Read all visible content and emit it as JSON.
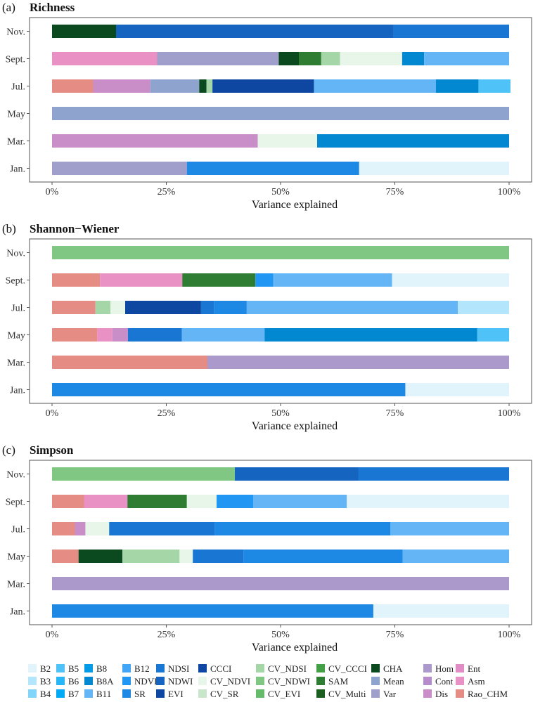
{
  "chart_data": [
    {
      "type": "stacked-bar",
      "panel": "(a)",
      "title": "Richness",
      "xlabel": "Variance explained",
      "xlim": [
        0,
        100
      ],
      "xticks": [
        "0%",
        "25%",
        "50%",
        "75%",
        "100%"
      ],
      "categories": [
        "Jan.",
        "Mar.",
        "May",
        "Jul.",
        "Sept.",
        "Nov."
      ],
      "bars": {
        "Nov.": [
          [
            "CHA",
            14
          ],
          [
            "NDWI",
            60.7
          ],
          [
            "NDSI",
            25.3
          ]
        ],
        "Sept.": [
          [
            "Asm",
            23
          ],
          [
            "Var",
            26.6
          ],
          [
            "CHA",
            4.4
          ],
          [
            "SAM",
            4.9
          ],
          [
            "CV_NDSI",
            4.1
          ],
          [
            "CV_NDVI",
            13.6
          ],
          [
            "B8A",
            4.8
          ],
          [
            "B11",
            18.6
          ]
        ],
        "Jul.": [
          [
            "Rao_CHM",
            9
          ],
          [
            "Dis",
            12.5
          ],
          [
            "Mean",
            10.7
          ],
          [
            "CHA",
            1.6
          ],
          [
            "CV_NDSI",
            1.3
          ],
          [
            "EVI",
            22.2
          ],
          [
            "B11",
            26.7
          ],
          [
            "B8A",
            9.3
          ],
          [
            "B5",
            7
          ]
        ],
        "May": [
          [
            "Mean",
            100
          ]
        ],
        "Mar.": [
          [
            "Dis",
            45
          ],
          [
            "CV_NDVI",
            13
          ],
          [
            "B8A",
            42
          ]
        ],
        "Jan.": [
          [
            "Var",
            29.5
          ],
          [
            "SR",
            37.7
          ],
          [
            "B2",
            32.8
          ]
        ]
      }
    },
    {
      "type": "stacked-bar",
      "panel": "(b)",
      "title": "Shannon−Wiener",
      "xlabel": "Variance explained",
      "xlim": [
        0,
        100
      ],
      "xticks": [
        "0%",
        "25%",
        "50%",
        "75%",
        "100%"
      ],
      "categories": [
        "Jan.",
        "Mar.",
        "May",
        "Jul.",
        "Sept.",
        "Nov."
      ],
      "bars": {
        "Nov.": [
          [
            "CV_NDWI",
            100
          ]
        ],
        "Sept.": [
          [
            "Rao_CHM",
            10.5
          ],
          [
            "Asm",
            18
          ],
          [
            "SAM",
            16
          ],
          [
            "NDVI",
            3.9
          ],
          [
            "B11",
            26
          ],
          [
            "B2",
            25.6
          ]
        ],
        "Jul.": [
          [
            "Rao_CHM",
            9.5
          ],
          [
            "CV_NDSI",
            3.3
          ],
          [
            "CV_NDVI",
            3.2
          ],
          [
            "EVI",
            16.6
          ],
          [
            "NDSI",
            2.8
          ],
          [
            "SR",
            7.2
          ],
          [
            "B11",
            46.2
          ],
          [
            "B3",
            11.2
          ]
        ],
        "May": [
          [
            "Rao_CHM",
            9.9
          ],
          [
            "Asm",
            3.3
          ],
          [
            "Dis",
            3.4
          ],
          [
            "NDSI",
            11.8
          ],
          [
            "B11",
            18.1
          ],
          [
            "B8A",
            46.5
          ],
          [
            "B5",
            7
          ]
        ],
        "Mar.": [
          [
            "Rao_CHM",
            34
          ],
          [
            "Hom",
            66
          ]
        ],
        "Jan.": [
          [
            "SR",
            77.3
          ],
          [
            "B2",
            22.7
          ]
        ]
      }
    },
    {
      "type": "stacked-bar",
      "panel": "(c)",
      "title": "Simpson",
      "xlabel": "Variance explained",
      "xlim": [
        0,
        100
      ],
      "xticks": [
        "0%",
        "25%",
        "50%",
        "75%",
        "100%"
      ],
      "categories": [
        "Jan.",
        "Mar.",
        "May",
        "Jul.",
        "Sept.",
        "Nov."
      ],
      "bars": {
        "Nov.": [
          [
            "CV_NDWI",
            40
          ],
          [
            "NDWI",
            27
          ],
          [
            "NDSI",
            33
          ]
        ],
        "Sept.": [
          [
            "Rao_CHM",
            7
          ],
          [
            "Asm",
            9.5
          ],
          [
            "SAM",
            13
          ],
          [
            "CV_NDVI",
            6.5
          ],
          [
            "NDVI",
            8
          ],
          [
            "B11",
            20.5
          ],
          [
            "B2",
            35.5
          ]
        ],
        "Jul.": [
          [
            "Rao_CHM",
            5
          ],
          [
            "Dis",
            2.3
          ],
          [
            "CV_NDVI",
            5.2
          ],
          [
            "NDSI",
            23.1
          ],
          [
            "SR",
            38.4
          ],
          [
            "B11",
            26
          ]
        ],
        "May": [
          [
            "Rao_CHM",
            5.8
          ],
          [
            "CHA",
            9.6
          ],
          [
            "CV_NDSI",
            12.5
          ],
          [
            "CV_NDVI",
            2.9
          ],
          [
            "NDSI",
            11.1
          ],
          [
            "SR",
            34.8
          ],
          [
            "B11",
            23.3
          ]
        ],
        "Mar.": [
          [
            "Hom",
            100
          ]
        ],
        "Jan.": [
          [
            "SR",
            70.3
          ],
          [
            "B2",
            29.7
          ]
        ]
      }
    }
  ],
  "legend": {
    "placement": "bottom",
    "columns": [
      [
        "B2",
        "B3",
        "B4"
      ],
      [
        "B5",
        "B6",
        "B7"
      ],
      [
        "B8",
        "B8A",
        "B11"
      ],
      [
        "B12",
        "NDVI",
        "SR"
      ],
      [
        "NDSI",
        "NDWI",
        "EVI"
      ],
      [
        "CCCI",
        "CV_NDVI",
        "CV_SR"
      ],
      [
        "CV_NDSI",
        "CV_NDWI",
        "CV_EVI"
      ],
      [
        "CV_CCCI",
        "SAM",
        "CV_Multi"
      ],
      [
        "CHA",
        "Mean",
        "Var"
      ],
      [
        "Hom",
        "Cont",
        "Dis"
      ],
      [
        "Ent",
        "Asm",
        "Rao_CHM"
      ]
    ]
  },
  "colors": {
    "B2": "#e1f3fb",
    "B3": "#b3e5fc",
    "B4": "#81d4fa",
    "B5": "#4fc3f7",
    "B6": "#29b6f6",
    "B7": "#03a9f4",
    "B8": "#039be5",
    "B8A": "#0288d1",
    "B11": "#64b5f6",
    "B12": "#42a5f5",
    "NDVI": "#2196f3",
    "SR": "#1e88e5",
    "NDSI": "#1976d2",
    "NDWI": "#1565c0",
    "EVI": "#0d47a1",
    "CCCI": "#0d47a1",
    "CV_NDVI": "#e8f5e9",
    "CV_SR": "#c8e6c9",
    "CV_NDSI": "#a5d6a7",
    "CV_NDWI": "#81c784",
    "CV_EVI": "#66bb6a",
    "CV_CCCI": "#43a047",
    "SAM": "#2e7d32",
    "CV_Multi": "#1b5e20",
    "CHA": "#0b4a1e",
    "Mean": "#8ea4cf",
    "Var": "#a09fcb",
    "Hom": "#ac99cb",
    "Cont": "#b68ccb",
    "Dis": "#c98ec7",
    "Ent": "#e28cc6",
    "Asm": "#e990c4",
    "Rao_CHM": "#e58d84"
  }
}
